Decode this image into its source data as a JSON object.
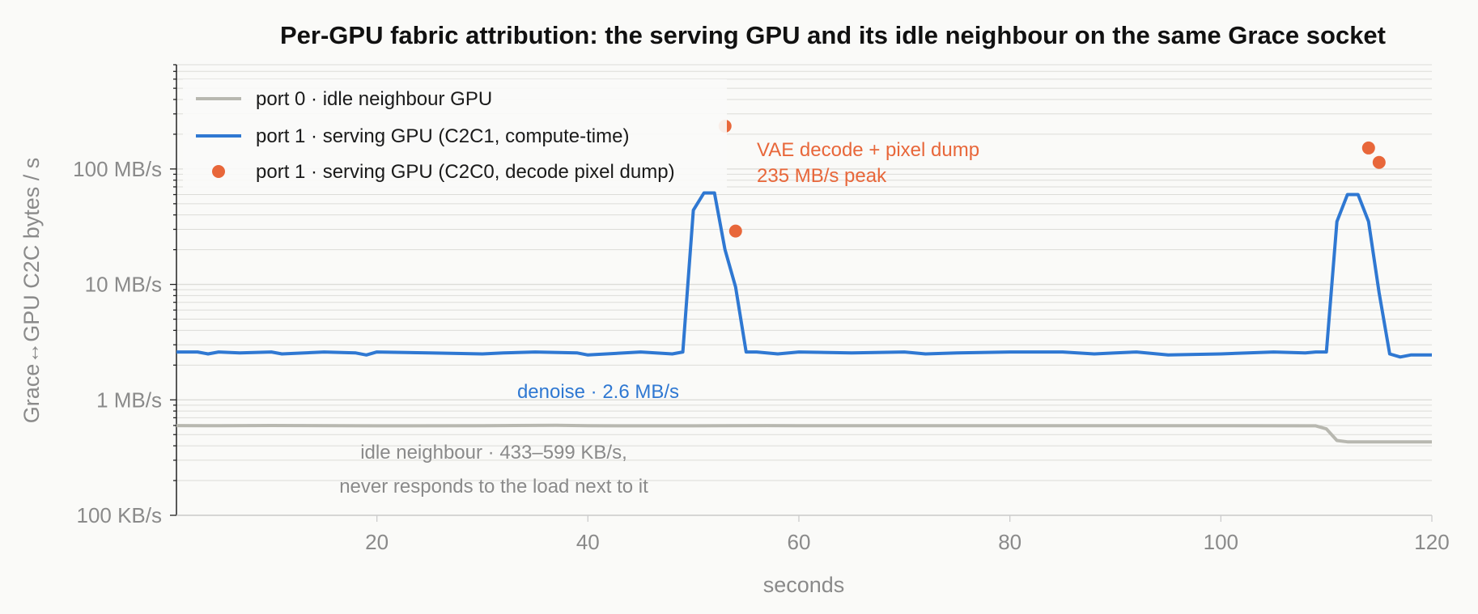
{
  "chart_data": {
    "type": "line",
    "title": "Per-GPU fabric attribution: the serving GPU and its idle neighbour on the same Grace socket",
    "xlabel": "seconds",
    "ylabel": "Grace↔GPU C2C bytes / s",
    "xlim": [
      1,
      120
    ],
    "ylim_bytes_per_s": [
      100000,
      800000000
    ],
    "yscale": "log",
    "grid": "horizontal, major and minor",
    "legend_position": "top-left",
    "x_ticks": [
      20,
      40,
      60,
      80,
      100,
      120
    ],
    "x_tick_labels": [
      "20",
      "40",
      "60",
      "80",
      "100",
      "120"
    ],
    "y_ticks_bytes_per_s": [
      100000,
      1000000,
      10000000,
      100000000
    ],
    "y_tick_labels": [
      "100 KB/s",
      "1 MB/s",
      "10 MB/s",
      "100 MB/s"
    ],
    "colors": {
      "port0": "#b8b8b0",
      "port1_c2c1": "#2f78d2",
      "port1_c2c0": "#e8673a",
      "grid": "#dcdcd8"
    },
    "series": [
      {
        "name": "port 0 · idle neighbour GPU",
        "x": [
          1,
          5,
          10,
          20,
          30,
          37,
          40,
          50,
          57,
          60,
          70,
          80,
          90,
          100,
          109,
          110,
          111,
          112,
          120
        ],
        "y_bytes_per_s": [
          599000,
          597000,
          600000,
          596000,
          597000,
          602000,
          597000,
          596000,
          599000,
          597000,
          597000,
          597000,
          597000,
          598000,
          596000,
          560000,
          445000,
          433000,
          433000
        ]
      },
      {
        "name": "port 1 · serving GPU (C2C1, compute-time)",
        "x": [
          1,
          3,
          4,
          5,
          7,
          10,
          11,
          15,
          18,
          19,
          20,
          25,
          30,
          32,
          35,
          39,
          40,
          45,
          48,
          49,
          50,
          51,
          52,
          53,
          54,
          55,
          56,
          58,
          60,
          65,
          70,
          72,
          75,
          80,
          85,
          88,
          90,
          92,
          95,
          100,
          105,
          108,
          109,
          110,
          111,
          112,
          113,
          114,
          115,
          116,
          117,
          118,
          120
        ],
        "y_bytes_per_s": [
          2600000,
          2600000,
          2500000,
          2600000,
          2550000,
          2600000,
          2500000,
          2600000,
          2550000,
          2450000,
          2600000,
          2550000,
          2500000,
          2550000,
          2600000,
          2550000,
          2450000,
          2600000,
          2500000,
          2600000,
          44000000,
          62000000,
          62000000,
          20000000,
          9500000,
          2600000,
          2600000,
          2500000,
          2600000,
          2550000,
          2600000,
          2500000,
          2550000,
          2600000,
          2600000,
          2500000,
          2550000,
          2600000,
          2450000,
          2500000,
          2600000,
          2550000,
          2600000,
          2600000,
          35000000,
          60000000,
          60000000,
          35000000,
          8500000,
          2500000,
          2350000,
          2450000,
          2450000
        ]
      },
      {
        "name": "port 1 · serving GPU (C2C0, decode pixel dump)",
        "x": [
          53,
          54,
          114,
          115
        ],
        "y_bytes_per_s": [
          235000000,
          29000000,
          152000000,
          114000000
        ]
      }
    ],
    "annotations": {
      "peak_line1": "VAE decode + pixel dump",
      "peak_line2": "235 MB/s peak",
      "denoise": "denoise · 2.6 MB/s",
      "idle_line1": "idle neighbour · 433–599 KB/s,",
      "idle_line2": "never responds to the load next to it"
    }
  }
}
